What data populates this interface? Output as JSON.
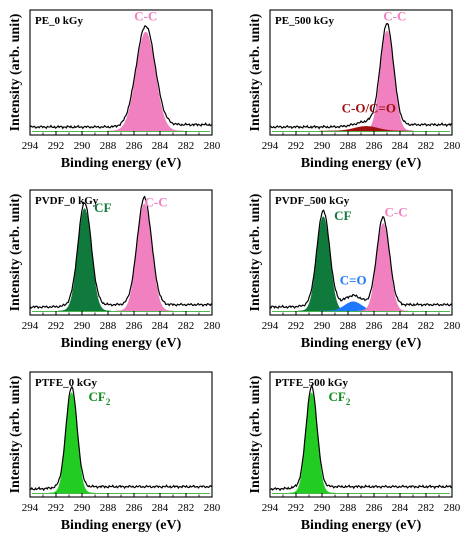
{
  "chart_data": [
    {
      "type": "area",
      "panel_label": "PE_0 kGy",
      "xlabel": "Binding energy (eV)",
      "ylabel": "Intensity (arb. unit)",
      "xlim": [
        294,
        280
      ],
      "xticks": [
        294,
        292,
        290,
        288,
        286,
        284,
        282,
        280
      ],
      "series": [
        {
          "label": "C-C",
          "label_at": [
            285.1,
            0.96
          ],
          "color": "#f080c0",
          "label_color": "#f080c0",
          "center": 285.1,
          "height": 0.86,
          "width": 0.72
        }
      ]
    },
    {
      "type": "area",
      "panel_label": "PE_500 kGy",
      "xlabel": "Binding energy (eV)",
      "ylabel": "Intensity (arb. unit)",
      "xlim": [
        294,
        280
      ],
      "xticks": [
        294,
        292,
        290,
        288,
        286,
        284,
        282,
        280
      ],
      "series": [
        {
          "label": "C-C",
          "label_at": [
            284.4,
            0.96
          ],
          "color": "#f080c0",
          "label_color": "#f080c0",
          "center": 285.0,
          "height": 0.87,
          "width": 0.5
        },
        {
          "label": "C-O/C=O",
          "label_at": [
            286.4,
            0.16
          ],
          "color": "#a01010",
          "label_color": "#a01010",
          "center": 286.6,
          "height": 0.04,
          "width": 0.9
        }
      ]
    },
    {
      "type": "area",
      "panel_label": "PVDF_0 kGy",
      "xlabel": "Binding energy (eV)",
      "ylabel": "Intensity (arb. unit)",
      "xlim": [
        294,
        280
      ],
      "xticks": [
        294,
        292,
        290,
        288,
        286,
        284,
        282,
        280
      ],
      "series": [
        {
          "label": "CF",
          "label_at": [
            288.4,
            0.86
          ],
          "color": "#0f7a3c",
          "label_color": "#0f7a3c",
          "center": 289.8,
          "height": 0.89,
          "width": 0.5
        },
        {
          "label": "C-C",
          "label_at": [
            284.3,
            0.91
          ],
          "color": "#f080c0",
          "label_color": "#f080c0",
          "center": 285.2,
          "height": 0.93,
          "width": 0.55
        }
      ]
    },
    {
      "type": "area",
      "panel_label": "PVDF_500 kGy",
      "xlabel": "Binding energy (eV)",
      "ylabel": "Intensity (arb. unit)",
      "xlim": [
        294,
        280
      ],
      "xticks": [
        294,
        292,
        290,
        288,
        286,
        284,
        282,
        280
      ],
      "series": [
        {
          "label": "CF",
          "label_at": [
            288.4,
            0.79
          ],
          "color": "#0f7a3c",
          "label_color": "#0f7a3c",
          "center": 289.9,
          "height": 0.82,
          "width": 0.48
        },
        {
          "label": "C=O",
          "label_at": [
            287.6,
            0.23
          ],
          "color": "#1e78ff",
          "label_color": "#1e78ff",
          "center": 287.6,
          "height": 0.08,
          "width": 0.65
        },
        {
          "label": "C-C",
          "label_at": [
            284.3,
            0.82
          ],
          "color": "#f080c0",
          "label_color": "#f080c0",
          "center": 285.3,
          "height": 0.76,
          "width": 0.48
        }
      ]
    },
    {
      "type": "area",
      "panel_label": "PTFE_0 kGy",
      "label_text": "CF",
      "label_sub": "2",
      "xlabel": "Binding energy (eV)",
      "ylabel": "Intensity (arb. unit)",
      "xlim": [
        294,
        280
      ],
      "xticks": [
        294,
        292,
        290,
        288,
        286,
        284,
        282,
        280
      ],
      "series": [
        {
          "label": "CF2",
          "label_at": [
            289.5,
            0.8
          ],
          "color": "#22cc22",
          "label_color": "#0f8a1f",
          "center": 290.8,
          "height": 0.87,
          "width": 0.42
        }
      ]
    },
    {
      "type": "area",
      "panel_label": "PTFE_500 kGy",
      "label_text": "CF",
      "label_sub": "2",
      "xlabel": "Binding energy (eV)",
      "ylabel": "Intensity (arb. unit)",
      "xlim": [
        294,
        280
      ],
      "xticks": [
        294,
        292,
        290,
        288,
        286,
        284,
        282,
        280
      ],
      "series": [
        {
          "label": "CF2",
          "label_at": [
            289.5,
            0.8
          ],
          "color": "#22cc22",
          "label_color": "#0f8a1f",
          "center": 290.8,
          "height": 0.87,
          "width": 0.42
        }
      ]
    }
  ]
}
